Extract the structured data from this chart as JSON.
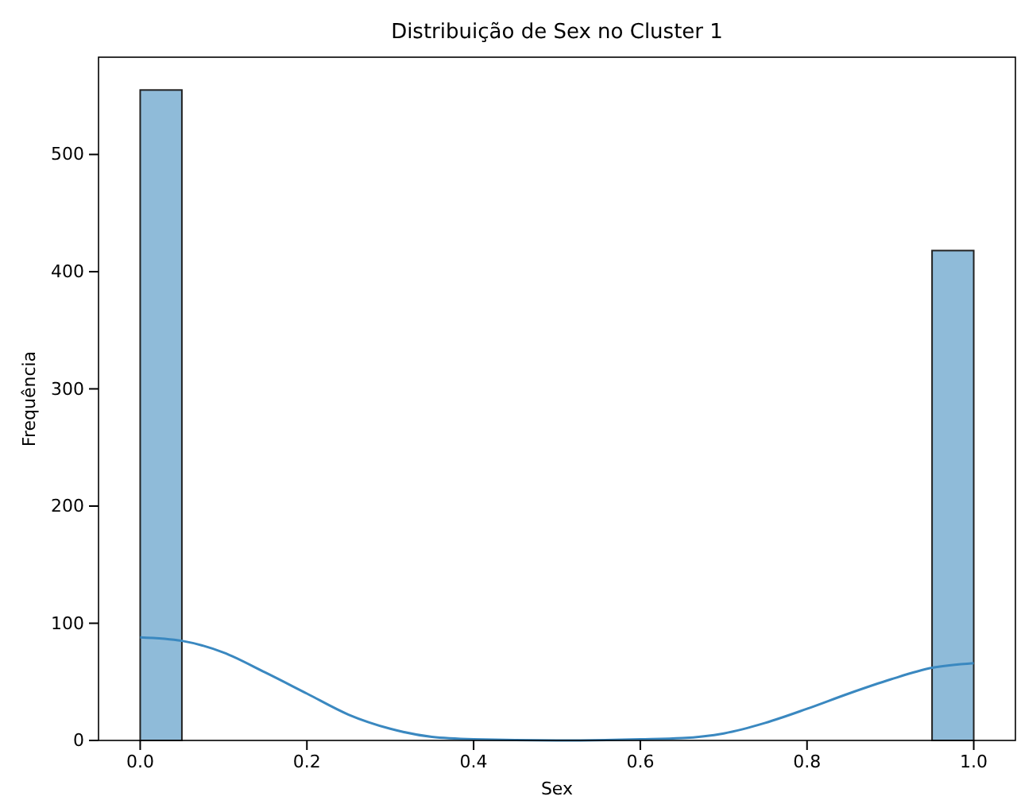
{
  "chart_data": {
    "type": "histogram",
    "title": "Distribuição de Sex no Cluster 1",
    "xlabel": "Sex",
    "ylabel": "Frequência",
    "xlim": [
      -0.05,
      1.05
    ],
    "ylim": [
      0,
      583
    ],
    "xticks": [
      {
        "value": 0,
        "label": "0.0"
      },
      {
        "value": 0.2,
        "label": "0.2"
      },
      {
        "value": 0.4,
        "label": "0.4"
      },
      {
        "value": 0.6,
        "label": "0.6"
      },
      {
        "value": 0.8,
        "label": "0.8"
      },
      {
        "value": 1,
        "label": "1.0"
      }
    ],
    "yticks": [
      0,
      100,
      200,
      300,
      400,
      500
    ],
    "grid": false,
    "series": [
      {
        "color": "#8fbbd9",
        "bins": [
          0,
          0.05,
          0.1,
          0.15,
          0.2,
          0.25,
          0.3,
          0.35,
          0.4,
          0.45,
          0.5,
          0.55,
          0.6,
          0.65,
          0.7,
          0.75,
          0.8,
          0.85,
          0.9,
          0.95,
          1
        ],
        "values": [
          555,
          0,
          0,
          0,
          0,
          0,
          0,
          0,
          0,
          0,
          0,
          0,
          0,
          0,
          0,
          0,
          0,
          0,
          0,
          418
        ]
      },
      {
        "type": "line",
        "color": "#3a88c0",
        "x": [
          0,
          0.05,
          0.1,
          0.15,
          0.2,
          0.25,
          0.3,
          0.35,
          0.4,
          0.5,
          0.6,
          0.65,
          0.7,
          0.75,
          0.8,
          0.85,
          0.9,
          0.95,
          1
        ],
        "values": [
          88,
          85,
          75,
          58,
          40,
          22,
          10,
          3,
          1,
          0,
          1,
          2,
          6,
          15,
          27,
          40,
          52,
          62,
          66
        ]
      }
    ]
  }
}
